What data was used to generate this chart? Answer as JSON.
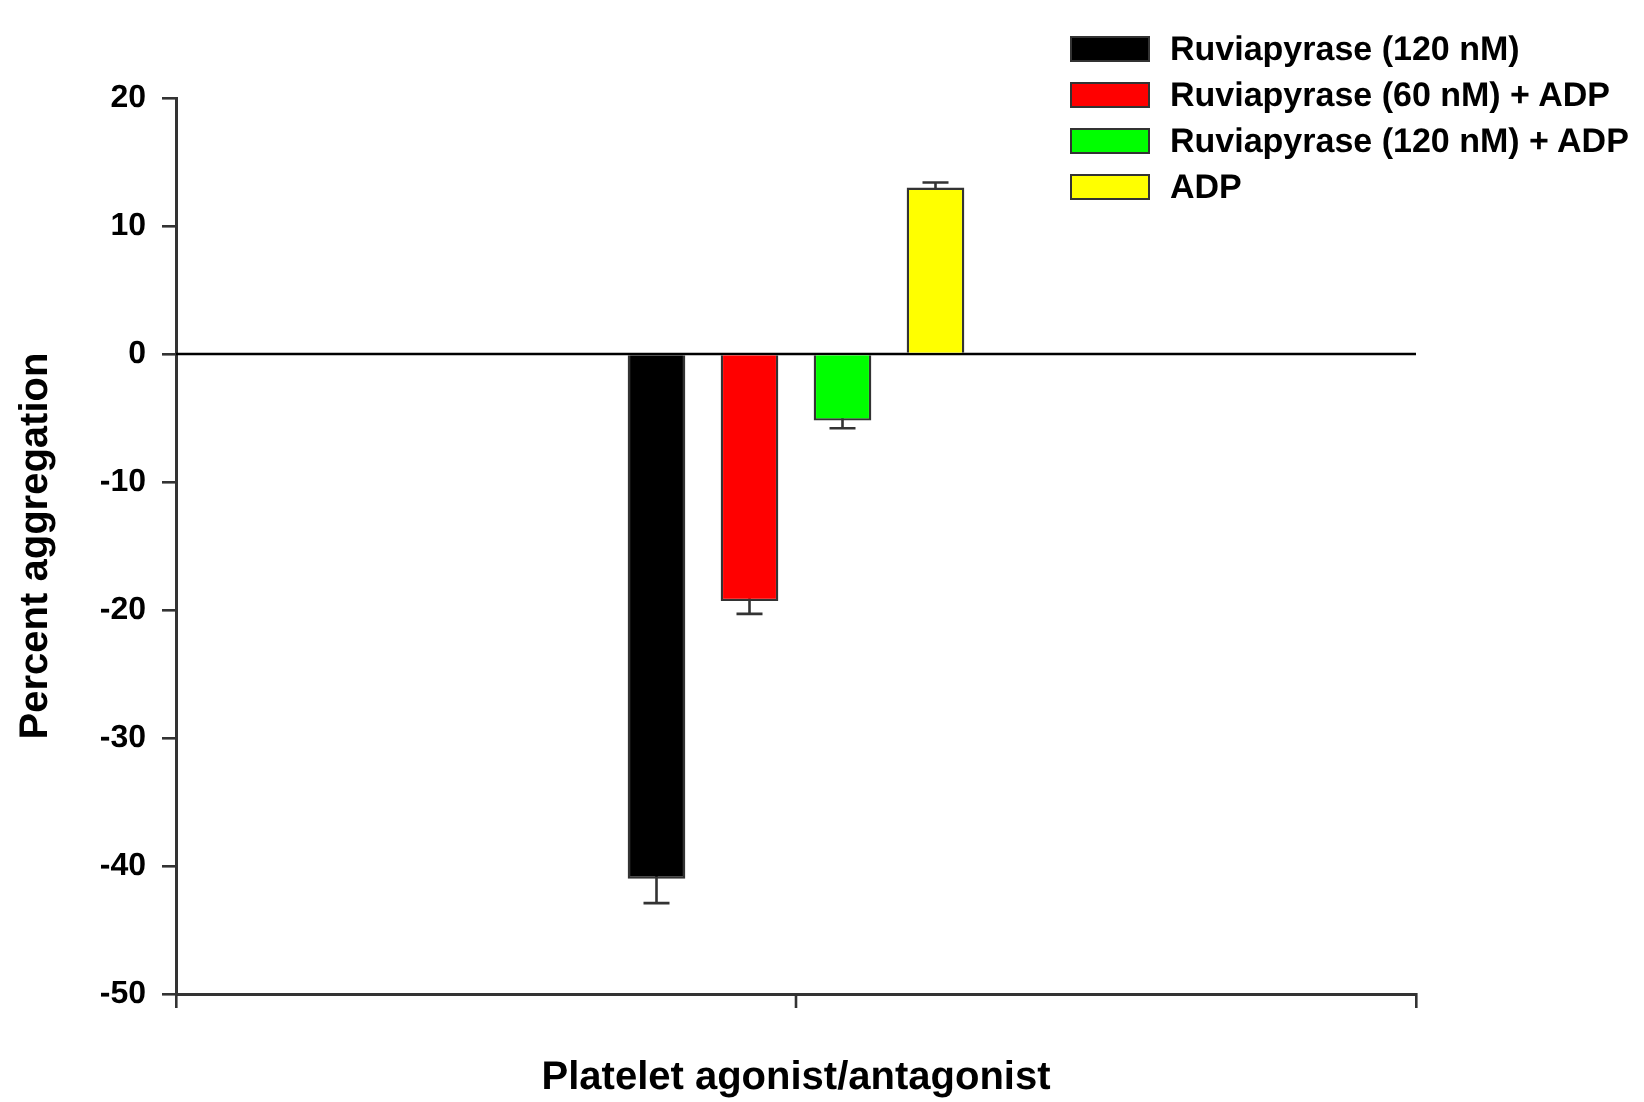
{
  "chart_data": {
    "type": "bar",
    "xlabel": "Platelet agonist/antagonist",
    "ylabel": "Percent aggregation",
    "categories": [
      null
    ],
    "series": [
      {
        "name": "Ruviapyrase (120 nM)",
        "color": "#000000",
        "values": [
          -41
        ],
        "errors": [
          1.9
        ]
      },
      {
        "name": "Ruviapyrase (60 nM) + ADP",
        "color": "#ff0000",
        "values": [
          -19.3
        ],
        "errors": [
          1
        ]
      },
      {
        "name": "Ruviapyrase (120 nM) + ADP",
        "color": "#00ff00",
        "values": [
          -5.2
        ],
        "errors": [
          0.6
        ]
      },
      {
        "name": "ADP",
        "color": "#ffff00",
        "values": [
          13
        ],
        "errors": [
          0.4
        ]
      }
    ],
    "ylim": [
      -50,
      20
    ],
    "yticks": [
      -50,
      -40,
      -30,
      -20,
      -10,
      0,
      10,
      20
    ],
    "ref_lines": [
      {
        "axis": "y",
        "value": 0,
        "color": "#000000"
      }
    ],
    "legend": "top right"
  }
}
